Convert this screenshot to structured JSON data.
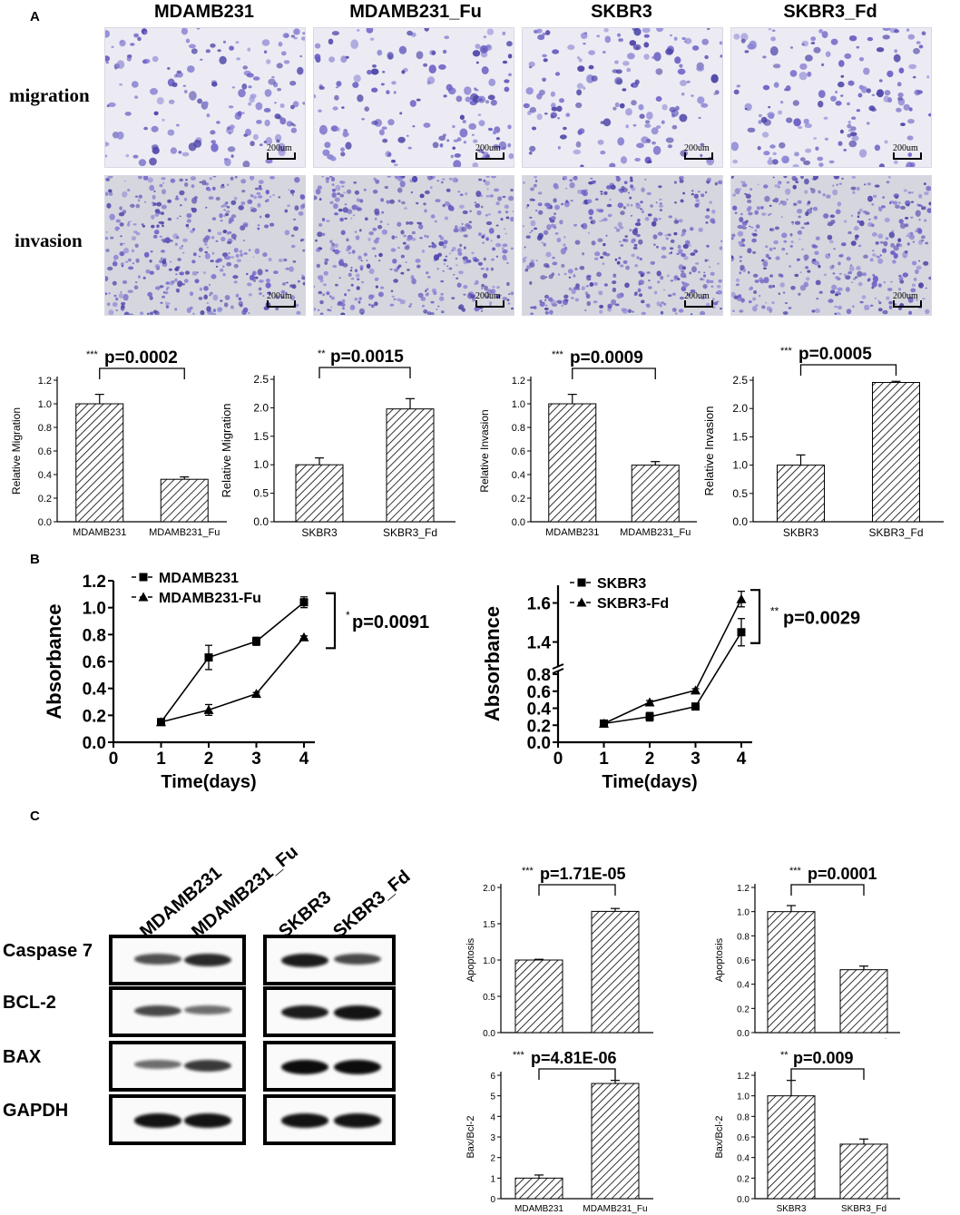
{
  "panels": {
    "a": "A",
    "b": "B",
    "c": "C"
  },
  "panel_a": {
    "columns": [
      "MDAMB231",
      "MDAMB231_Fu",
      "SKBR3",
      "SKBR3_Fd"
    ],
    "rows": [
      "migration",
      "invasion"
    ],
    "scale_bar": "200um"
  },
  "panel_b": {
    "x_ticks": [
      "0",
      "1",
      "2",
      "3",
      "4"
    ]
  },
  "panel_c": {
    "lanes_left": [
      "MDAMB231",
      "MDAMB231_Fu"
    ],
    "lanes_right": [
      "SKBR3",
      "SKBR3_Fd"
    ],
    "proteins": [
      "Caspase 7",
      "BCL-2",
      "BAX",
      "GAPDH"
    ]
  },
  "chart_data": [
    {
      "id": "a1",
      "type": "bar",
      "categories": [
        "MDAMB231",
        "MDAMB231_Fu"
      ],
      "values": [
        1.0,
        0.36
      ],
      "errors": [
        0.08,
        0.02
      ],
      "ylabel": "Relative Migration",
      "ylim": [
        0,
        1.2
      ],
      "yticks": [
        "0.0",
        "0.2",
        "0.4",
        "0.6",
        "0.8",
        "1.0",
        "1.2"
      ],
      "stars": "***",
      "annotation": "p=0.0002"
    },
    {
      "id": "a2",
      "type": "bar",
      "categories": [
        "SKBR3",
        "SKBR3_Fd"
      ],
      "values": [
        1.0,
        1.98
      ],
      "errors": [
        0.12,
        0.18
      ],
      "ylabel": "Relative Migration",
      "ylim": [
        0,
        2.5
      ],
      "yticks": [
        "0.0",
        "0.5",
        "1.0",
        "1.5",
        "2.0",
        "2.5"
      ],
      "stars": "**",
      "annotation": "p=0.0015"
    },
    {
      "id": "a3",
      "type": "bar",
      "categories": [
        "MDAMB231",
        "MDAMB231_Fu"
      ],
      "values": [
        1.0,
        0.48
      ],
      "errors": [
        0.08,
        0.03
      ],
      "ylabel": "Relative Invasion",
      "ylim": [
        0,
        1.2
      ],
      "yticks": [
        "0.0",
        "0.2",
        "0.4",
        "0.6",
        "0.8",
        "1.0",
        "1.2"
      ],
      "stars": "***",
      "annotation": "p=0.0009"
    },
    {
      "id": "a4",
      "type": "bar",
      "categories": [
        "SKBR3",
        "SKBR3_Fd"
      ],
      "values": [
        1.0,
        2.46
      ],
      "errors": [
        0.18,
        0.02
      ],
      "ylabel": "Relative Invasion",
      "ylim": [
        0,
        2.5
      ],
      "yticks": [
        "0.0",
        "0.5",
        "1.0",
        "1.5",
        "2.0",
        "2.5"
      ],
      "stars": "***",
      "annotation": "p=0.0005"
    },
    {
      "id": "b1",
      "type": "line",
      "x": [
        1,
        2,
        3,
        4
      ],
      "series": [
        {
          "name": "MDAMB231",
          "marker": "square",
          "values": [
            0.15,
            0.63,
            0.75,
            1.04
          ],
          "errors": [
            0.02,
            0.09,
            0.03,
            0.04
          ]
        },
        {
          "name": "MDAMB231-Fu",
          "marker": "triangle",
          "values": [
            0.15,
            0.24,
            0.36,
            0.78
          ],
          "errors": [
            0.02,
            0.04,
            0.01,
            0.01
          ]
        }
      ],
      "xlabel": "Time(days)",
      "ylabel": "Absorbance",
      "xlim": [
        0,
        4
      ],
      "ylim": [
        0,
        1.2
      ],
      "yticks": [
        "0.0",
        "0.2",
        "0.4",
        "0.6",
        "0.8",
        "1.0",
        "1.2"
      ],
      "stars": "*",
      "annotation": "p=0.0091"
    },
    {
      "id": "b2",
      "type": "line",
      "x": [
        1,
        2,
        3,
        4
      ],
      "series": [
        {
          "name": "SKBR3",
          "marker": "square",
          "values": [
            0.22,
            0.3,
            0.42,
            1.45
          ],
          "errors": [
            0.02,
            0.05,
            0.03,
            0.07
          ]
        },
        {
          "name": "SKBR3-Fd",
          "marker": "triangle",
          "values": [
            0.22,
            0.47,
            0.61,
            1.62
          ],
          "errors": [
            0.01,
            0.02,
            0.02,
            0.04
          ]
        }
      ],
      "xlabel": "Time(days)",
      "ylabel": "Absorbance",
      "xlim": [
        0,
        4
      ],
      "axis_break": {
        "lower": [
          0,
          0.8
        ],
        "upper": [
          1.3,
          1.7
        ]
      },
      "yticks_lower": [
        "0.0",
        "0.2",
        "0.4",
        "0.6",
        "0.8"
      ],
      "yticks_upper": [
        "1.4",
        "1.6"
      ],
      "stars": "**",
      "annotation": "p=0.0029"
    },
    {
      "id": "c1",
      "type": "bar",
      "categories": [
        "MDAMB231",
        "MDAMB231_Fu"
      ],
      "values": [
        1.0,
        1.67
      ],
      "errors": [
        0.01,
        0.04
      ],
      "ylabel": "Apoptosis",
      "ylim": [
        0,
        2.0
      ],
      "yticks": [
        "0.0",
        "0.5",
        "1.0",
        "1.5",
        "2.0"
      ],
      "stars": "***",
      "annotation": "p=1.71E-05"
    },
    {
      "id": "c2",
      "type": "bar",
      "categories": [
        "SKBR3",
        "SKBR3_Fd"
      ],
      "values": [
        1.0,
        0.52
      ],
      "errors": [
        0.05,
        0.03
      ],
      "ylabel": "Apoptosis",
      "ylim": [
        0,
        1.2
      ],
      "yticks": [
        "0.0",
        "0.2",
        "0.4",
        "0.6",
        "0.8",
        "1.0",
        "1.2"
      ],
      "stars": "***",
      "annotation": "p=0.0001"
    },
    {
      "id": "c3",
      "type": "bar",
      "categories": [
        "MDAMB231",
        "MDAMB231_Fu"
      ],
      "values": [
        1.0,
        5.6
      ],
      "errors": [
        0.15,
        0.15
      ],
      "ylabel": "Bax/Bcl-2",
      "ylim": [
        0,
        6
      ],
      "yticks": [
        "0",
        "1",
        "2",
        "3",
        "4",
        "5",
        "6"
      ],
      "stars": "***",
      "annotation": "p=4.81E-06"
    },
    {
      "id": "c4",
      "type": "bar",
      "categories": [
        "SKBR3",
        "SKBR3_Fd"
      ],
      "values": [
        1.0,
        0.53
      ],
      "errors": [
        0.15,
        0.05
      ],
      "ylabel": "Bax/Bcl-2",
      "ylim": [
        0,
        1.2
      ],
      "yticks": [
        "0.0",
        "0.2",
        "0.4",
        "0.6",
        "0.8",
        "1.0",
        "1.2"
      ],
      "stars": "**",
      "annotation": "p=0.009"
    }
  ]
}
